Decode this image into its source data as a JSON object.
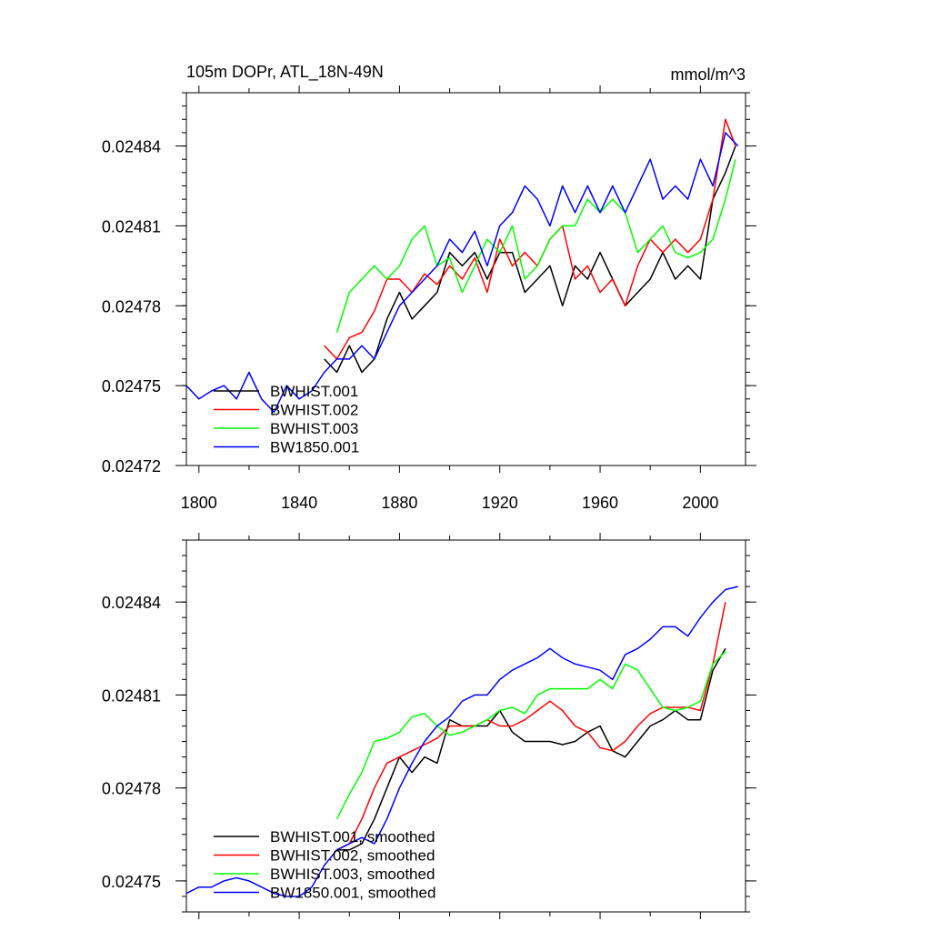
{
  "chart_data": [
    {
      "type": "line",
      "title": "105m DOPr, ATL_18N-49N",
      "units": "mmol/m^3",
      "xlabel": "",
      "ylabel": "",
      "xlim": [
        1795,
        2018
      ],
      "ylim": [
        0.02472,
        0.02486
      ],
      "xticks": [
        1800,
        1840,
        1880,
        1920,
        1960,
        2000
      ],
      "xtick_labels": [
        "1800",
        "1840",
        "1880",
        "1920",
        "1960",
        "2000"
      ],
      "yticks": [
        0.02472,
        0.02475,
        0.02478,
        0.02481,
        0.02484
      ],
      "ytick_labels": [
        "0.02472",
        "0.02475",
        "0.02478",
        "0.02481",
        "0.02484"
      ],
      "legend_position": "bottom-left",
      "series": [
        {
          "name": "BWHIST.001",
          "color": "#000000",
          "x": [
            1850,
            1855,
            1860,
            1865,
            1870,
            1875,
            1880,
            1885,
            1890,
            1895,
            1900,
            1905,
            1910,
            1915,
            1920,
            1925,
            1930,
            1935,
            1940,
            1945,
            1950,
            1955,
            1960,
            1965,
            1970,
            1975,
            1980,
            1985,
            1990,
            1995,
            2000,
            2005,
            2010,
            2014
          ],
          "y": [
            0.02476,
            0.024755,
            0.024765,
            0.024755,
            0.02476,
            0.024775,
            0.024785,
            0.024775,
            0.02478,
            0.024785,
            0.0248,
            0.024795,
            0.0248,
            0.02479,
            0.0248,
            0.0248,
            0.024785,
            0.02479,
            0.024795,
            0.02478,
            0.024795,
            0.02479,
            0.0248,
            0.02479,
            0.02478,
            0.024785,
            0.02479,
            0.0248,
            0.02479,
            0.024795,
            0.02479,
            0.02482,
            0.02483,
            0.02484
          ]
        },
        {
          "name": "BWHIST.002",
          "color": "#ff0000",
          "x": [
            1850,
            1855,
            1860,
            1865,
            1870,
            1875,
            1880,
            1885,
            1890,
            1895,
            1900,
            1905,
            1910,
            1915,
            1920,
            1925,
            1930,
            1935,
            1940,
            1945,
            1950,
            1955,
            1960,
            1965,
            1970,
            1975,
            1980,
            1985,
            1990,
            1995,
            2000,
            2005,
            2010,
            2014
          ],
          "y": [
            0.024765,
            0.02476,
            0.024768,
            0.02477,
            0.024778,
            0.02479,
            0.02479,
            0.024785,
            0.024792,
            0.024788,
            0.024795,
            0.02479,
            0.024798,
            0.024785,
            0.024805,
            0.024795,
            0.0248,
            0.024795,
            0.024805,
            0.02481,
            0.02479,
            0.024795,
            0.024785,
            0.02479,
            0.02478,
            0.024795,
            0.024805,
            0.0248,
            0.024805,
            0.0248,
            0.024805,
            0.02482,
            0.02485,
            0.02484
          ]
        },
        {
          "name": "BWHIST.003",
          "color": "#00ff00",
          "x": [
            1855,
            1860,
            1865,
            1870,
            1875,
            1880,
            1885,
            1890,
            1895,
            1900,
            1905,
            1910,
            1915,
            1920,
            1925,
            1930,
            1935,
            1940,
            1945,
            1950,
            1955,
            1960,
            1965,
            1970,
            1975,
            1980,
            1985,
            1990,
            1995,
            2000,
            2005,
            2010,
            2014
          ],
          "y": [
            0.02477,
            0.024785,
            0.02479,
            0.024795,
            0.02479,
            0.024795,
            0.024805,
            0.02481,
            0.024795,
            0.024798,
            0.024785,
            0.024795,
            0.024805,
            0.0248,
            0.02481,
            0.02479,
            0.024795,
            0.024805,
            0.02481,
            0.02481,
            0.02482,
            0.024815,
            0.02482,
            0.024815,
            0.0248,
            0.024805,
            0.02481,
            0.0248,
            0.024798,
            0.0248,
            0.024805,
            0.02482,
            0.024835
          ]
        },
        {
          "name": "BW1850.001",
          "color": "#0000ff",
          "x": [
            1795,
            1800,
            1805,
            1810,
            1815,
            1820,
            1825,
            1830,
            1835,
            1840,
            1845,
            1850,
            1855,
            1860,
            1865,
            1870,
            1875,
            1880,
            1885,
            1890,
            1895,
            1900,
            1905,
            1910,
            1915,
            1920,
            1925,
            1930,
            1935,
            1940,
            1945,
            1950,
            1955,
            1960,
            1965,
            1970,
            1975,
            1980,
            1985,
            1990,
            1995,
            2000,
            2005,
            2010,
            2015
          ],
          "y": [
            0.02475,
            0.024745,
            0.024748,
            0.02475,
            0.024745,
            0.024755,
            0.024745,
            0.02474,
            0.02475,
            0.024745,
            0.024748,
            0.024755,
            0.02476,
            0.02476,
            0.024765,
            0.02476,
            0.02477,
            0.02478,
            0.024785,
            0.02479,
            0.024795,
            0.024805,
            0.0248,
            0.024808,
            0.024795,
            0.02481,
            0.024815,
            0.024825,
            0.02482,
            0.02481,
            0.024825,
            0.024815,
            0.024825,
            0.024815,
            0.024825,
            0.024815,
            0.024825,
            0.024835,
            0.02482,
            0.024825,
            0.02482,
            0.024835,
            0.024825,
            0.024845,
            0.02484
          ]
        }
      ]
    },
    {
      "type": "line",
      "title": "",
      "xlabel": "",
      "ylabel": "",
      "xlim": [
        1795,
        2018
      ],
      "ylim": [
        0.02474,
        0.02486
      ],
      "yticks": [
        0.02475,
        0.02478,
        0.02481,
        0.02484
      ],
      "ytick_labels": [
        "0.02475",
        "0.02478",
        "0.02481",
        "0.02484"
      ],
      "legend_position": "bottom-left",
      "series": [
        {
          "name": "BWHIST.001, smoothed",
          "color": "#000000",
          "x": [
            1855,
            1860,
            1865,
            1870,
            1875,
            1880,
            1885,
            1890,
            1895,
            1900,
            1905,
            1910,
            1915,
            1920,
            1925,
            1930,
            1935,
            1940,
            1945,
            1950,
            1955,
            1960,
            1965,
            1970,
            1975,
            1980,
            1985,
            1990,
            1995,
            2000,
            2005,
            2010
          ],
          "y": [
            0.02476,
            0.02476,
            0.024762,
            0.02477,
            0.02478,
            0.02479,
            0.024785,
            0.02479,
            0.024788,
            0.024802,
            0.0248,
            0.0248,
            0.0248,
            0.024805,
            0.024798,
            0.024795,
            0.024795,
            0.024795,
            0.024794,
            0.024795,
            0.024798,
            0.0248,
            0.024792,
            0.02479,
            0.024795,
            0.0248,
            0.024802,
            0.024805,
            0.024802,
            0.024802,
            0.024818,
            0.024825
          ]
        },
        {
          "name": "BWHIST.002, smoothed",
          "color": "#ff0000",
          "x": [
            1855,
            1860,
            1865,
            1870,
            1875,
            1880,
            1885,
            1890,
            1895,
            1900,
            1905,
            1910,
            1915,
            1920,
            1925,
            1930,
            1935,
            1940,
            1945,
            1950,
            1955,
            1960,
            1965,
            1970,
            1975,
            1980,
            1985,
            1990,
            1995,
            2000,
            2005,
            2010
          ],
          "y": [
            0.02476,
            0.024762,
            0.02477,
            0.02478,
            0.024788,
            0.02479,
            0.024792,
            0.024794,
            0.024796,
            0.0248,
            0.0248,
            0.0248,
            0.024802,
            0.0248,
            0.0248,
            0.024802,
            0.024805,
            0.024808,
            0.024805,
            0.0248,
            0.024798,
            0.024793,
            0.024792,
            0.024795,
            0.0248,
            0.024804,
            0.024806,
            0.024806,
            0.024806,
            0.024805,
            0.02482,
            0.02484
          ]
        },
        {
          "name": "BWHIST.003, smoothed",
          "color": "#00ff00",
          "x": [
            1855,
            1860,
            1865,
            1870,
            1875,
            1880,
            1885,
            1890,
            1895,
            1900,
            1905,
            1910,
            1915,
            1920,
            1925,
            1930,
            1935,
            1940,
            1945,
            1950,
            1955,
            1960,
            1965,
            1970,
            1975,
            1980,
            1985,
            1990,
            1995,
            2000,
            2005,
            2010
          ],
          "y": [
            0.02477,
            0.024778,
            0.024785,
            0.024795,
            0.024796,
            0.024798,
            0.024803,
            0.024804,
            0.0248,
            0.024797,
            0.024798,
            0.0248,
            0.024802,
            0.024805,
            0.024806,
            0.024804,
            0.02481,
            0.024812,
            0.024812,
            0.024812,
            0.024812,
            0.024815,
            0.024812,
            0.02482,
            0.024818,
            0.024812,
            0.024806,
            0.024805,
            0.024806,
            0.024808,
            0.02482,
            0.024824
          ]
        },
        {
          "name": "BW1850.001, smoothed",
          "color": "#0000ff",
          "x": [
            1795,
            1800,
            1805,
            1810,
            1815,
            1820,
            1825,
            1830,
            1835,
            1840,
            1845,
            1850,
            1855,
            1860,
            1865,
            1870,
            1875,
            1880,
            1885,
            1890,
            1895,
            1900,
            1905,
            1910,
            1915,
            1920,
            1925,
            1930,
            1935,
            1940,
            1945,
            1950,
            1955,
            1960,
            1965,
            1970,
            1975,
            1980,
            1985,
            1990,
            1995,
            2000,
            2005,
            2010,
            2015
          ],
          "y": [
            0.024746,
            0.024748,
            0.024748,
            0.02475,
            0.024751,
            0.02475,
            0.024748,
            0.024746,
            0.024745,
            0.024745,
            0.024748,
            0.024755,
            0.02476,
            0.024762,
            0.024764,
            0.024762,
            0.02477,
            0.02478,
            0.024788,
            0.024795,
            0.0248,
            0.024803,
            0.024808,
            0.02481,
            0.02481,
            0.024815,
            0.024818,
            0.02482,
            0.024822,
            0.024825,
            0.024822,
            0.02482,
            0.024819,
            0.024818,
            0.024815,
            0.024823,
            0.024825,
            0.024828,
            0.024832,
            0.024832,
            0.024829,
            0.024835,
            0.02484,
            0.024844,
            0.024845
          ]
        }
      ]
    }
  ]
}
